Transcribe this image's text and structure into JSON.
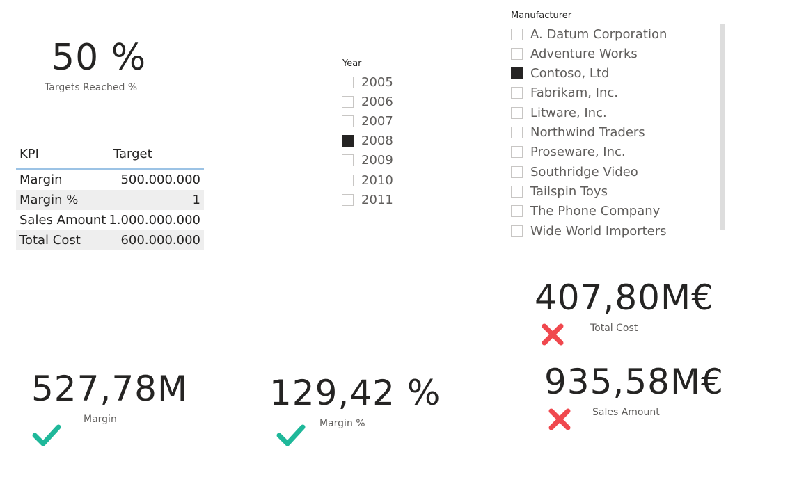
{
  "targets_card": {
    "value": "50 %",
    "label": "Targets Reached %"
  },
  "kpi_table": {
    "headers": {
      "kpi": "KPI",
      "target": "Target"
    },
    "rows": [
      {
        "kpi": "Margin",
        "target": "500.000.000"
      },
      {
        "kpi": "Margin %",
        "target": "1"
      },
      {
        "kpi": "Sales Amount",
        "target": "1.000.000.000"
      },
      {
        "kpi": "Total Cost",
        "target": "600.000.000"
      }
    ]
  },
  "year_slicer": {
    "title": "Year",
    "options": [
      {
        "label": "2005",
        "checked": false
      },
      {
        "label": "2006",
        "checked": false
      },
      {
        "label": "2007",
        "checked": false
      },
      {
        "label": "2008",
        "checked": true
      },
      {
        "label": "2009",
        "checked": false
      },
      {
        "label": "2010",
        "checked": false
      },
      {
        "label": "2011",
        "checked": false
      }
    ]
  },
  "manufacturer_slicer": {
    "title": "Manufacturer",
    "options": [
      {
        "label": "A. Datum Corporation",
        "checked": false
      },
      {
        "label": "Adventure Works",
        "checked": false
      },
      {
        "label": "Contoso, Ltd",
        "checked": true
      },
      {
        "label": "Fabrikam, Inc.",
        "checked": false
      },
      {
        "label": "Litware, Inc.",
        "checked": false
      },
      {
        "label": "Northwind Traders",
        "checked": false
      },
      {
        "label": "Proseware, Inc.",
        "checked": false
      },
      {
        "label": "Southridge Video",
        "checked": false
      },
      {
        "label": "Tailspin Toys",
        "checked": false
      },
      {
        "label": "The Phone Company",
        "checked": false
      },
      {
        "label": "Wide World Importers",
        "checked": false
      }
    ]
  },
  "total_cost_card": {
    "value": "407,80M€",
    "label": "Total Cost",
    "status": "cross-icon"
  },
  "sales_amount_card": {
    "value": "935,58M€",
    "label": "Sales Amount",
    "status": "cross-icon"
  },
  "margin_card": {
    "value": "527,78M",
    "label": "Margin",
    "status": "check-icon"
  },
  "margin_pct_card": {
    "value": "129,42 %",
    "label": "Margin %",
    "status": "check-icon"
  },
  "colors": {
    "check": "#1fb89a",
    "cross": "#f0484e",
    "text": "#252423",
    "caption": "#605e5c"
  }
}
